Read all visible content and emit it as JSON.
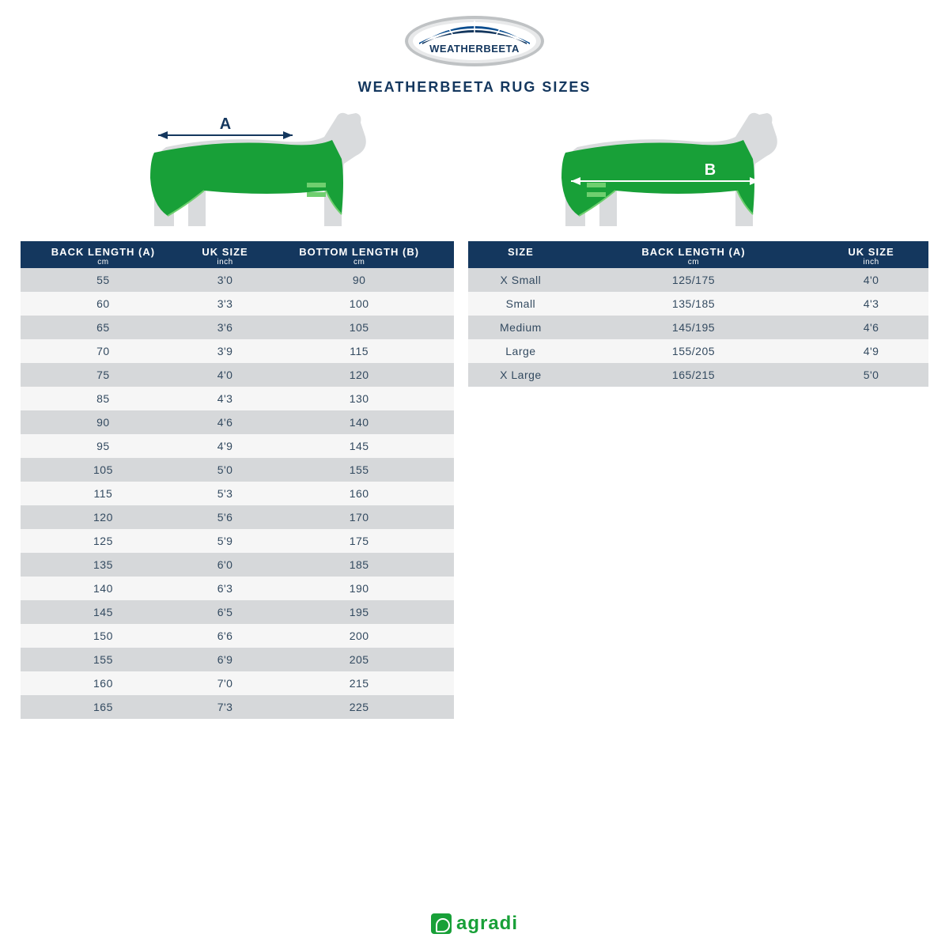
{
  "brand_logo_text": "WEATHERBEETA",
  "title": "WEATHERBEETA RUG SIZES",
  "footer_brand": "agradi",
  "horse_silhouette_color": "#d9dbdd",
  "rug_color": "#18a038",
  "rug_stroke": "#6fcf6f",
  "measurement_label_color": "#14375e",
  "arrow_color_a": "#14375e",
  "arrow_color_b": "#ffffff",
  "labelA": "A",
  "labelB": "B",
  "left_table": {
    "headers": [
      {
        "main": "BACK LENGTH (A)",
        "sub": "cm"
      },
      {
        "main": "UK SIZE",
        "sub": "inch"
      },
      {
        "main": "BOTTOM LENGTH (B)",
        "sub": "cm"
      }
    ],
    "rows": [
      [
        "55",
        "3'0",
        "90"
      ],
      [
        "60",
        "3'3",
        "100"
      ],
      [
        "65",
        "3'6",
        "105"
      ],
      [
        "70",
        "3'9",
        "115"
      ],
      [
        "75",
        "4'0",
        "120"
      ],
      [
        "85",
        "4'3",
        "130"
      ],
      [
        "90",
        "4'6",
        "140"
      ],
      [
        "95",
        "4'9",
        "145"
      ],
      [
        "105",
        "5'0",
        "155"
      ],
      [
        "115",
        "5'3",
        "160"
      ],
      [
        "120",
        "5'6",
        "170"
      ],
      [
        "125",
        "5'9",
        "175"
      ],
      [
        "135",
        "6'0",
        "185"
      ],
      [
        "140",
        "6'3",
        "190"
      ],
      [
        "145",
        "6'5",
        "195"
      ],
      [
        "150",
        "6'6",
        "200"
      ],
      [
        "155",
        "6'9",
        "205"
      ],
      [
        "160",
        "7'0",
        "215"
      ],
      [
        "165",
        "7'3",
        "225"
      ]
    ]
  },
  "right_table": {
    "headers": [
      {
        "main": "SIZE",
        "sub": ""
      },
      {
        "main": "BACK LENGTH (A)",
        "sub": "cm"
      },
      {
        "main": "UK SIZE",
        "sub": "inch"
      }
    ],
    "rows": [
      [
        "X Small",
        "125/175",
        "4'0"
      ],
      [
        "Small",
        "135/185",
        "4'3"
      ],
      [
        "Medium",
        "145/195",
        "4'6"
      ],
      [
        "Large",
        "155/205",
        "4'9"
      ],
      [
        "X Large",
        "165/215",
        "5'0"
      ]
    ]
  },
  "logo_ellipse_colors": {
    "outer": "#bfc2c4",
    "mid": "#e8e9ea",
    "inner": "#ffffff",
    "arc1": "#0a4d8f",
    "arc2": "#14375e",
    "text": "#14375e"
  }
}
